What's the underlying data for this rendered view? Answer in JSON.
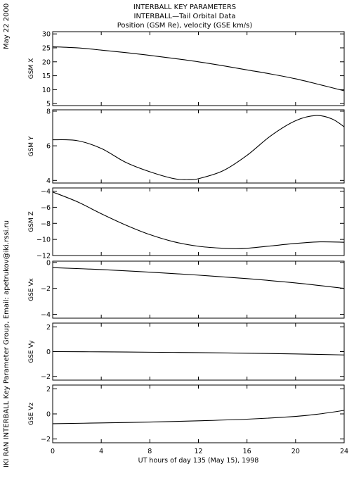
{
  "header": {
    "title_lines": [
      "INTERBALL KEY PARAMETERS",
      "INTERBALL—Tail Orbital Data",
      "Position (GSM Re), velocity (GSE km/s)"
    ],
    "date_stamp": "May 22 2000",
    "credit": "IKI RAN INTERBALL Key Parameter Group, Email: apetrukov@iki.rssi.ru"
  },
  "chart_data": {
    "type": "line",
    "title": "INTERBALL KEY PARAMETERS / INTERBALL—Tail Orbital Data / Position (GSM Re), velocity (GSE km/s)",
    "xlabel": "UT hours of day 135 (May 15), 1998",
    "xlim": [
      0,
      24
    ],
    "x_ticks": [
      0,
      4,
      8,
      12,
      16,
      20,
      24
    ],
    "x_tick_labels": [
      "0",
      "4",
      "8",
      "12",
      "16",
      "20",
      "24"
    ],
    "panels": [
      {
        "ylabel": "GSM X",
        "ylim": [
          4.3,
          30.8
        ],
        "y_ticks": [
          5,
          10,
          15,
          20,
          25,
          30
        ],
        "y_tick_labels": [
          "5",
          "10",
          "15",
          "20",
          "25",
          "30"
        ],
        "x": [
          0,
          2,
          4,
          6,
          8,
          10,
          12,
          14,
          16,
          18,
          20,
          22,
          24
        ],
        "values": [
          25.4,
          25.0,
          24.2,
          23.3,
          22.3,
          21.2,
          20.0,
          18.6,
          17.1,
          15.6,
          13.9,
          11.8,
          9.6
        ]
      },
      {
        "ylabel": "GSM Y",
        "ylim": [
          3.85,
          8.08
        ],
        "y_ticks": [
          4,
          6,
          8
        ],
        "y_tick_labels": [
          "4",
          "6",
          "8"
        ],
        "x": [
          0,
          2,
          4,
          6,
          8,
          10,
          11.2,
          12,
          14,
          16,
          18,
          20,
          21.7,
          23,
          24
        ],
        "values": [
          6.35,
          6.3,
          5.85,
          5.05,
          4.5,
          4.1,
          4.05,
          4.1,
          4.55,
          5.45,
          6.6,
          7.45,
          7.75,
          7.55,
          7.1
        ]
      },
      {
        "ylabel": "GSM Z",
        "ylim": [
          -12.0,
          -3.6
        ],
        "y_ticks": [
          -4,
          -6,
          -8,
          -10,
          -12
        ],
        "y_tick_labels": [
          "−4",
          "−6",
          "−8",
          "−10",
          "−12"
        ],
        "x": [
          0,
          2,
          4,
          6,
          8,
          10,
          12,
          14,
          15,
          16,
          18,
          20,
          22,
          24
        ],
        "values": [
          -4.1,
          -5.3,
          -6.8,
          -8.2,
          -9.4,
          -10.3,
          -10.85,
          -11.1,
          -11.15,
          -11.1,
          -10.8,
          -10.5,
          -10.3,
          -10.35
        ]
      },
      {
        "ylabel": "GSE Vx",
        "ylim": [
          -4.3,
          0.1
        ],
        "y_ticks": [
          0,
          -2,
          -4
        ],
        "y_tick_labels": [
          "0",
          "−2",
          "−4"
        ],
        "x": [
          0,
          4,
          8,
          12,
          16,
          20,
          24
        ],
        "values": [
          -0.4,
          -0.55,
          -0.75,
          -0.98,
          -1.25,
          -1.58,
          -2.0
        ]
      },
      {
        "ylabel": "GSE Vy",
        "ylim": [
          -2.3,
          2.3
        ],
        "y_ticks": [
          2,
          0,
          -2
        ],
        "y_tick_labels": [
          "2",
          "0",
          "−2"
        ],
        "x": [
          0,
          4,
          8,
          12,
          16,
          20,
          24
        ],
        "values": [
          0.0,
          -0.02,
          -0.05,
          -0.08,
          -0.13,
          -0.19,
          -0.27
        ]
      },
      {
        "ylabel": "GSE Vz",
        "ylim": [
          -2.3,
          2.3
        ],
        "y_ticks": [
          2,
          0,
          -2
        ],
        "y_tick_labels": [
          "2",
          "0",
          "−2"
        ],
        "x": [
          0,
          4,
          8,
          12,
          16,
          20,
          22,
          24
        ],
        "values": [
          -0.78,
          -0.72,
          -0.65,
          -0.55,
          -0.42,
          -0.2,
          0.0,
          0.28
        ]
      }
    ]
  }
}
